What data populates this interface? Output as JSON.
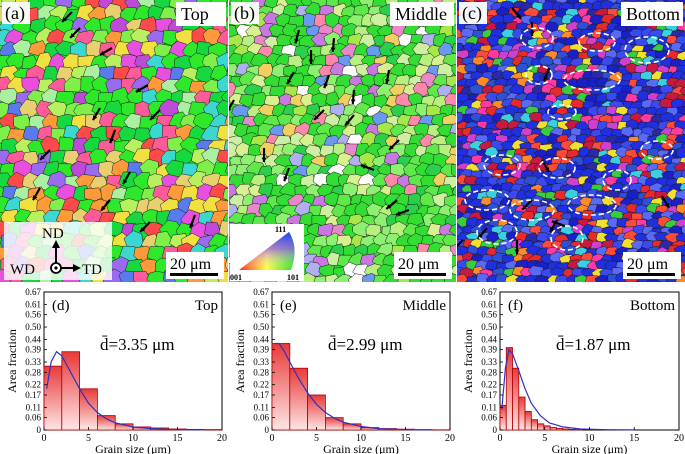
{
  "maps": [
    {
      "id": "a",
      "label": "(a)",
      "position": "Top",
      "scale": "20 μm",
      "palette": [
        "#2ee82a",
        "#18d840",
        "#7ff04a",
        "#b8f060",
        "#e84fe0",
        "#c04ad8",
        "#ff5b9a",
        "#ff9a3a",
        "#f0e040",
        "#3ad8d0",
        "#5a7af0",
        "#9a6af0",
        "#ff4a4a",
        "#e8d070",
        "#aaf0a0"
      ]
    },
    {
      "id": "b",
      "label": "(b)",
      "position": "Middle",
      "scale": "20 μm",
      "palette": [
        "#33dd33",
        "#5ee84a",
        "#8ef070",
        "#b8f080",
        "#ccf0a0",
        "#2bd04a",
        "#a6e84a",
        "#d8f090",
        "#c878e0",
        "#e888c8",
        "#6a9af0",
        "#f0d060",
        "#ff88aa",
        "#ffffff",
        "#b0b0f0"
      ]
    },
    {
      "id": "c",
      "label": "(c)",
      "position": "Bottom",
      "scale": "20 μm",
      "palette": [
        "#2030e0",
        "#3a4af0",
        "#1a20c8",
        "#5a6af8",
        "#2d50d8",
        "#e82a2a",
        "#ff4a3a",
        "#c81a40",
        "#ff3aa0",
        "#d040d0",
        "#3acc40",
        "#f0e030",
        "#ff8a2a",
        "#3ad0e0",
        "#2a2aa8"
      ]
    }
  ],
  "axes_legend": {
    "nd": "ND",
    "wd": "WD",
    "td": "TD"
  },
  "ipf_legend": {
    "top": "111",
    "left": "001",
    "right": "101"
  },
  "chart_data": [
    {
      "type": "bar",
      "id": "d",
      "label": "(d)",
      "position": "Top",
      "mean_text": "d̄=3.35 μm",
      "xlabel": "Grain size (μm)",
      "ylabel": "Area fraction",
      "xlim": [
        0,
        20
      ],
      "ylim": [
        0,
        0.67
      ],
      "xticks": [
        "0",
        "5",
        "10",
        "15",
        "20"
      ],
      "yticks": [
        "0",
        "0.06",
        "0.11",
        "0.17",
        "0.22",
        "0.28",
        "0.33",
        "0.39",
        "0.44",
        "0.50",
        "0.56",
        "0.61",
        "0.67"
      ],
      "bin_edges": [
        0,
        2,
        4,
        6,
        8,
        10,
        12,
        14,
        16,
        18,
        20
      ],
      "values": [
        0.31,
        0.38,
        0.2,
        0.07,
        0.03,
        0.015,
        0.01,
        0.005,
        0.003,
        0.002
      ],
      "fit": [
        [
          0.3,
          0.2
        ],
        [
          0.8,
          0.33
        ],
        [
          1.4,
          0.38
        ],
        [
          2,
          0.36
        ],
        [
          3,
          0.28
        ],
        [
          4,
          0.2
        ],
        [
          5,
          0.13
        ],
        [
          6,
          0.085
        ],
        [
          7,
          0.055
        ],
        [
          8,
          0.035
        ],
        [
          10,
          0.015
        ],
        [
          12,
          0.007
        ],
        [
          14,
          0.003
        ],
        [
          16,
          0.001
        ],
        [
          18,
          0.0005
        ]
      ]
    },
    {
      "type": "bar",
      "id": "e",
      "label": "(e)",
      "position": "Middle",
      "mean_text": "d̄=2.99 μm",
      "xlabel": "Grain size (μm)",
      "ylabel": "Area fraction",
      "xlim": [
        0,
        20
      ],
      "ylim": [
        0,
        0.67
      ],
      "xticks": [
        "0",
        "5",
        "10",
        "15",
        "20"
      ],
      "yticks": [
        "0",
        "0.06",
        "0.11",
        "0.17",
        "0.22",
        "0.28",
        "0.33",
        "0.39",
        "0.44",
        "0.50",
        "0.56",
        "0.61",
        "0.67"
      ],
      "bin_edges": [
        0,
        2,
        4,
        6,
        8,
        10,
        12,
        14,
        16,
        18,
        20
      ],
      "values": [
        0.42,
        0.3,
        0.17,
        0.06,
        0.03,
        0.012,
        0.007,
        0.004,
        0.002,
        0.001
      ],
      "fit": [
        [
          0.3,
          0.42
        ],
        [
          0.8,
          0.42
        ],
        [
          1.4,
          0.38
        ],
        [
          2,
          0.33
        ],
        [
          3,
          0.25
        ],
        [
          4,
          0.18
        ],
        [
          5,
          0.125
        ],
        [
          6,
          0.085
        ],
        [
          7,
          0.058
        ],
        [
          8,
          0.038
        ],
        [
          10,
          0.017
        ],
        [
          12,
          0.007
        ],
        [
          14,
          0.003
        ],
        [
          16,
          0.001
        ],
        [
          18,
          0.0005
        ]
      ]
    },
    {
      "type": "bar",
      "id": "f",
      "label": "(f)",
      "position": "Bottom",
      "mean_text": "d̄=1.87 μm",
      "xlabel": "Grain size (μm)",
      "ylabel": "Area fraction",
      "xlim": [
        0,
        20
      ],
      "ylim": [
        0,
        0.67
      ],
      "xticks": [
        "0",
        "5",
        "10",
        "15",
        "20"
      ],
      "yticks": [
        "0",
        "0.06",
        "0.11",
        "0.17",
        "0.22",
        "0.28",
        "0.33",
        "0.39",
        "0.44",
        "0.50",
        "0.56",
        "0.61",
        "0.67"
      ],
      "bin_edges": [
        0,
        0.7,
        1.4,
        2.1,
        2.8,
        3.5,
        4.2,
        4.9,
        5.6,
        6.3,
        7,
        7.7,
        8.4,
        9.1
      ],
      "values": [
        0.12,
        0.4,
        0.3,
        0.16,
        0.09,
        0.05,
        0.03,
        0.02,
        0.012,
        0.008,
        0.005,
        0.003,
        0.002
      ],
      "fit": [
        [
          0.2,
          0.1
        ],
        [
          0.6,
          0.3
        ],
        [
          1,
          0.39
        ],
        [
          1.4,
          0.37
        ],
        [
          2,
          0.3
        ],
        [
          2.8,
          0.2
        ],
        [
          3.5,
          0.13
        ],
        [
          4.5,
          0.07
        ],
        [
          5.5,
          0.035
        ],
        [
          7,
          0.015
        ],
        [
          9,
          0.005
        ],
        [
          12,
          0.0015
        ],
        [
          15,
          0.0004
        ]
      ]
    }
  ]
}
